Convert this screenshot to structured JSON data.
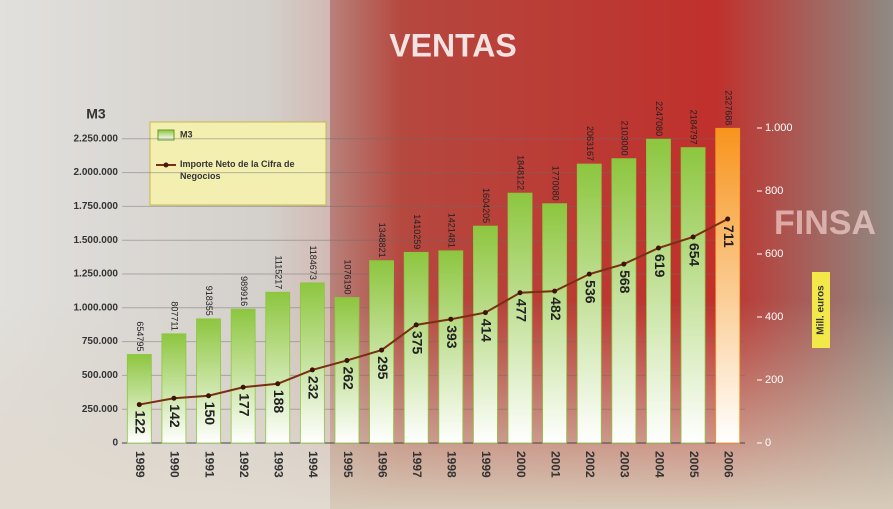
{
  "chart_data": {
    "type": "bar-line",
    "title": "VENTAS",
    "y_label": "M3",
    "y2_label": "Mill. euros",
    "photo_text": "FINSA",
    "categories": [
      "1989",
      "1990",
      "1991",
      "1992",
      "1993",
      "1994",
      "1995",
      "1996",
      "1997",
      "1998",
      "1999",
      "2000",
      "2001",
      "2002",
      "2003",
      "2004",
      "2005",
      "2006"
    ],
    "series": [
      {
        "name": "M3",
        "color": "#8dc63f",
        "highlight_color": "#f7941d",
        "values": [
          654795,
          807711,
          918355,
          989916,
          1115217,
          1184673,
          1076190,
          1348821,
          1410259,
          1421481,
          1604205,
          1848122,
          1770080,
          2063167,
          2103000,
          2247080,
          2184797,
          2327688
        ]
      },
      {
        "name": "Importe Neto de la Cifra de Negocios",
        "color": "#7a2e12",
        "axis": "y2",
        "values": [
          122,
          142,
          150,
          177,
          188,
          232,
          262,
          295,
          375,
          393,
          414,
          477,
          482,
          536,
          568,
          619,
          654,
          711
        ]
      }
    ],
    "ylim": [
      0,
      2500000
    ],
    "yticks": [
      0,
      {
        "value": 250000,
        "label": "250.000"
      },
      {
        "value": 500000,
        "label": "500.000"
      },
      {
        "value": 750000,
        "label": "750.000"
      },
      {
        "value": 1000000,
        "label": "1.000.000"
      },
      {
        "value": 1250000,
        "label": "1.250.000"
      },
      {
        "value": 1500000,
        "label": "1.500.000"
      },
      {
        "value": 1750000,
        "label": "1.750.000"
      },
      {
        "value": 2000000,
        "label": "2.000.000"
      },
      {
        "value": 2250000,
        "label": "2.250.000"
      }
    ],
    "y2lim": [
      0,
      1073
    ],
    "y2ticks": [
      0,
      200,
      400,
      600,
      800,
      {
        "value": 1000,
        "label": "1.000"
      }
    ],
    "grid": true
  }
}
